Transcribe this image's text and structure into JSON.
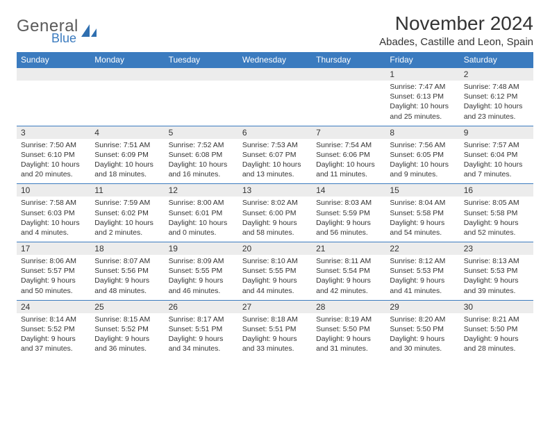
{
  "logo": {
    "text1": "General",
    "text2": "Blue",
    "icon_color": "#2f6fb0"
  },
  "title": "November 2024",
  "location": "Abades, Castille and Leon, Spain",
  "colors": {
    "header_bg": "#3b7bbf",
    "header_text": "#ffffff",
    "daynum_bg": "#ececec",
    "border": "#3b7bbf",
    "text": "#333333",
    "page_bg": "#ffffff"
  },
  "day_headers": [
    "Sunday",
    "Monday",
    "Tuesday",
    "Wednesday",
    "Thursday",
    "Friday",
    "Saturday"
  ],
  "weeks": [
    {
      "nums": [
        "",
        "",
        "",
        "",
        "",
        "1",
        "2"
      ],
      "cells": [
        {},
        {},
        {},
        {},
        {},
        {
          "sunrise": "7:47 AM",
          "sunset": "6:13 PM",
          "daylight": "10 hours and 25 minutes."
        },
        {
          "sunrise": "7:48 AM",
          "sunset": "6:12 PM",
          "daylight": "10 hours and 23 minutes."
        }
      ]
    },
    {
      "nums": [
        "3",
        "4",
        "5",
        "6",
        "7",
        "8",
        "9"
      ],
      "cells": [
        {
          "sunrise": "7:50 AM",
          "sunset": "6:10 PM",
          "daylight": "10 hours and 20 minutes."
        },
        {
          "sunrise": "7:51 AM",
          "sunset": "6:09 PM",
          "daylight": "10 hours and 18 minutes."
        },
        {
          "sunrise": "7:52 AM",
          "sunset": "6:08 PM",
          "daylight": "10 hours and 16 minutes."
        },
        {
          "sunrise": "7:53 AM",
          "sunset": "6:07 PM",
          "daylight": "10 hours and 13 minutes."
        },
        {
          "sunrise": "7:54 AM",
          "sunset": "6:06 PM",
          "daylight": "10 hours and 11 minutes."
        },
        {
          "sunrise": "7:56 AM",
          "sunset": "6:05 PM",
          "daylight": "10 hours and 9 minutes."
        },
        {
          "sunrise": "7:57 AM",
          "sunset": "6:04 PM",
          "daylight": "10 hours and 7 minutes."
        }
      ]
    },
    {
      "nums": [
        "10",
        "11",
        "12",
        "13",
        "14",
        "15",
        "16"
      ],
      "cells": [
        {
          "sunrise": "7:58 AM",
          "sunset": "6:03 PM",
          "daylight": "10 hours and 4 minutes."
        },
        {
          "sunrise": "7:59 AM",
          "sunset": "6:02 PM",
          "daylight": "10 hours and 2 minutes."
        },
        {
          "sunrise": "8:00 AM",
          "sunset": "6:01 PM",
          "daylight": "10 hours and 0 minutes."
        },
        {
          "sunrise": "8:02 AM",
          "sunset": "6:00 PM",
          "daylight": "9 hours and 58 minutes."
        },
        {
          "sunrise": "8:03 AM",
          "sunset": "5:59 PM",
          "daylight": "9 hours and 56 minutes."
        },
        {
          "sunrise": "8:04 AM",
          "sunset": "5:58 PM",
          "daylight": "9 hours and 54 minutes."
        },
        {
          "sunrise": "8:05 AM",
          "sunset": "5:58 PM",
          "daylight": "9 hours and 52 minutes."
        }
      ]
    },
    {
      "nums": [
        "17",
        "18",
        "19",
        "20",
        "21",
        "22",
        "23"
      ],
      "cells": [
        {
          "sunrise": "8:06 AM",
          "sunset": "5:57 PM",
          "daylight": "9 hours and 50 minutes."
        },
        {
          "sunrise": "8:07 AM",
          "sunset": "5:56 PM",
          "daylight": "9 hours and 48 minutes."
        },
        {
          "sunrise": "8:09 AM",
          "sunset": "5:55 PM",
          "daylight": "9 hours and 46 minutes."
        },
        {
          "sunrise": "8:10 AM",
          "sunset": "5:55 PM",
          "daylight": "9 hours and 44 minutes."
        },
        {
          "sunrise": "8:11 AM",
          "sunset": "5:54 PM",
          "daylight": "9 hours and 42 minutes."
        },
        {
          "sunrise": "8:12 AM",
          "sunset": "5:53 PM",
          "daylight": "9 hours and 41 minutes."
        },
        {
          "sunrise": "8:13 AM",
          "sunset": "5:53 PM",
          "daylight": "9 hours and 39 minutes."
        }
      ]
    },
    {
      "nums": [
        "24",
        "25",
        "26",
        "27",
        "28",
        "29",
        "30"
      ],
      "cells": [
        {
          "sunrise": "8:14 AM",
          "sunset": "5:52 PM",
          "daylight": "9 hours and 37 minutes."
        },
        {
          "sunrise": "8:15 AM",
          "sunset": "5:52 PM",
          "daylight": "9 hours and 36 minutes."
        },
        {
          "sunrise": "8:17 AM",
          "sunset": "5:51 PM",
          "daylight": "9 hours and 34 minutes."
        },
        {
          "sunrise": "8:18 AM",
          "sunset": "5:51 PM",
          "daylight": "9 hours and 33 minutes."
        },
        {
          "sunrise": "8:19 AM",
          "sunset": "5:50 PM",
          "daylight": "9 hours and 31 minutes."
        },
        {
          "sunrise": "8:20 AM",
          "sunset": "5:50 PM",
          "daylight": "9 hours and 30 minutes."
        },
        {
          "sunrise": "8:21 AM",
          "sunset": "5:50 PM",
          "daylight": "9 hours and 28 minutes."
        }
      ]
    }
  ],
  "labels": {
    "sunrise": "Sunrise:",
    "sunset": "Sunset:",
    "daylight": "Daylight:"
  }
}
